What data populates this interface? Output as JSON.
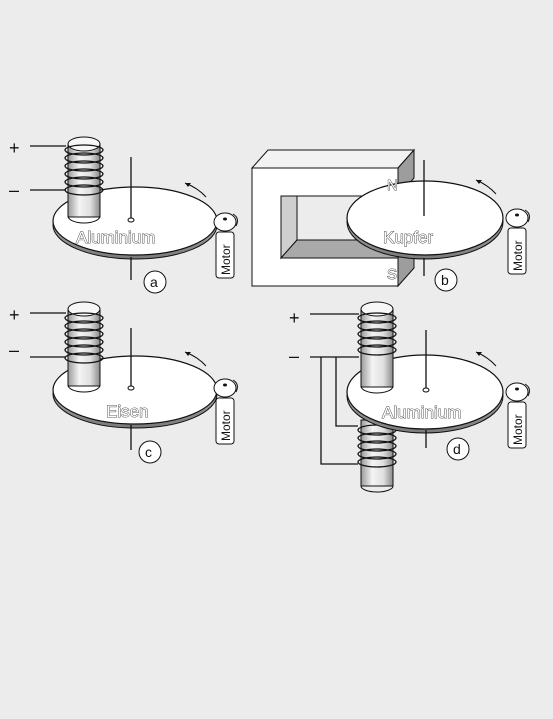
{
  "panels": {
    "a": {
      "tag": "a",
      "disk_label": "Aluminium",
      "motor_label": "Motor",
      "plus": "+",
      "minus": "–"
    },
    "b": {
      "tag": "b",
      "disk_label": "Kupfer",
      "motor_label": "Motor",
      "north": "N",
      "south": "S"
    },
    "c": {
      "tag": "c",
      "disk_label": "Eisen",
      "motor_label": "Motor",
      "plus": "+",
      "minus": "–"
    },
    "d": {
      "tag": "d",
      "disk_label": "Aluminium",
      "motor_label": "Motor",
      "plus": "+",
      "minus": "–"
    }
  },
  "colors": {
    "line": "#111111",
    "fill": "#ffffff",
    "shade": "#bdbdbd",
    "background": "#ececec"
  }
}
